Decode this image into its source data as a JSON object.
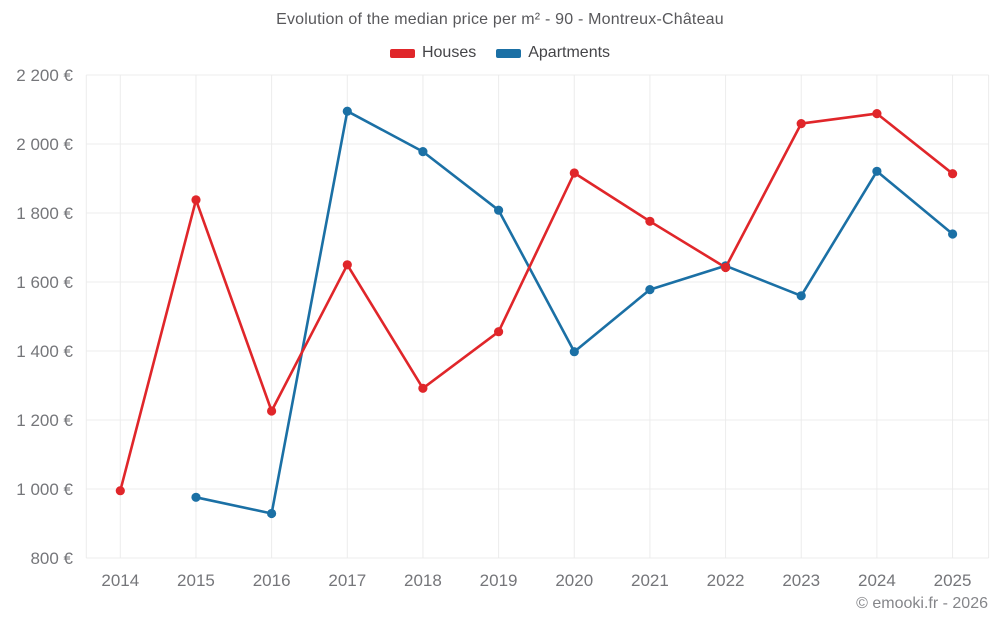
{
  "page": {
    "title": "Evolution of the median price per m² - 90 - Montreux-Château",
    "copyright": "© emooki.fr - 2026"
  },
  "legend": {
    "items": [
      {
        "label": "Houses",
        "color": "#e0262a"
      },
      {
        "label": "Apartments",
        "color": "#1b70a5"
      }
    ]
  },
  "chart_data": {
    "type": "line",
    "title": "Evolution of the median price per m² - 90 - Montreux-Château",
    "x": [
      2014,
      2015,
      2016,
      2017,
      2018,
      2019,
      2020,
      2021,
      2022,
      2023,
      2024,
      2025
    ],
    "series": [
      {
        "name": "Houses",
        "color": "#e0262a",
        "values": [
          995,
          1838,
          1226,
          1650,
          1292,
          1456,
          1916,
          1776,
          1642,
          2059,
          2088,
          1914
        ]
      },
      {
        "name": "Apartments",
        "color": "#1b70a5",
        "values": [
          null,
          976,
          929,
          2095,
          1978,
          1808,
          1398,
          1578,
          1647,
          1560,
          1921,
          1739
        ]
      }
    ],
    "xlabel": "",
    "ylabel": "",
    "ylim": [
      800,
      2200
    ],
    "y_ticks": [
      800,
      1000,
      1200,
      1400,
      1600,
      1800,
      2000,
      2200
    ],
    "y_tick_labels": [
      "800 €",
      "1 000 €",
      "1 200 €",
      "1 400 €",
      "1 600 €",
      "1 800 €",
      "2 000 €",
      "2 200 €"
    ],
    "grid": true,
    "legend_position": "top"
  },
  "colors": {
    "grid": "#ececec",
    "tick_text": "#75767a",
    "title_text": "#58585b",
    "legend_text": "#454548",
    "copyright_text": "#85868a",
    "background": "#ffffff"
  }
}
